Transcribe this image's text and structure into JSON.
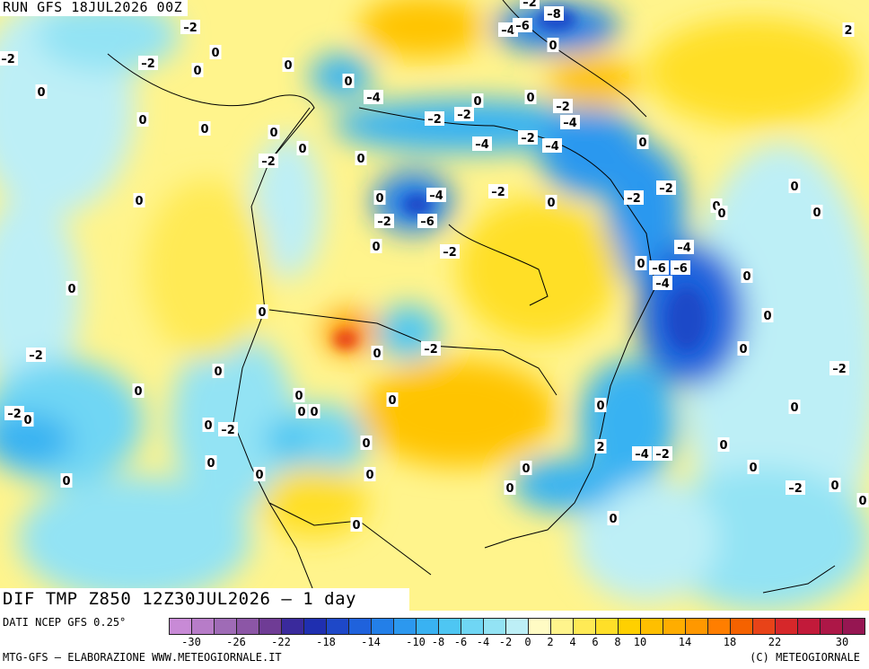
{
  "run_label": "RUN GFS 18JUL2026 00Z",
  "title": "DIF TMP Z850 12Z30JUL2026 – 1 day",
  "source": "DATI NCEP GFS 0.25°",
  "credit_left": "MTG-GFS – ELABORAZIONE WWW.METEOGIORNALE.IT",
  "credit_right": "(C) METEOGIORNALE",
  "legend": {
    "colors": [
      "#c88ad6",
      "#b77cc8",
      "#9f6bb6",
      "#8c56a6",
      "#6f3c95",
      "#3a2a9c",
      "#1f2fb0",
      "#1e48c8",
      "#1f62dc",
      "#237fe8",
      "#2c98ef",
      "#39b2f2",
      "#4ec6f3",
      "#6fd6f4",
      "#93e3f4",
      "#bdeff6",
      "#fffbc4",
      "#fff48c",
      "#ffea55",
      "#ffdf28",
      "#ffd000",
      "#ffbf00",
      "#ffad00",
      "#ff9800",
      "#ff7e00",
      "#f56200",
      "#e84318",
      "#d6272a",
      "#c21a3a",
      "#ad1747",
      "#961652"
    ],
    "tick_labels": [
      "-30",
      "-26",
      "-22",
      "-18",
      "-14",
      "-10",
      "-8",
      "-6",
      "-4",
      "-2",
      "0",
      "2",
      "4",
      "6",
      "8",
      "10",
      "14",
      "18",
      "22",
      "30"
    ],
    "tick_positions": [
      1,
      3,
      5,
      7,
      9,
      11,
      12,
      13,
      14,
      15,
      16,
      17,
      18,
      19,
      20,
      21,
      23,
      25,
      27,
      30
    ]
  },
  "map_labels": [
    {
      "text": "-2",
      "kind": "neg"
    },
    {
      "text": "-2",
      "kind": "neg"
    },
    {
      "text": "0",
      "kind": "zero"
    },
    {
      "text": "0",
      "kind": "zero"
    },
    {
      "text": "0",
      "kind": "zero"
    },
    {
      "text": "-4",
      "kind": "neg"
    },
    {
      "text": "-6",
      "kind": "neg"
    },
    {
      "text": "-8",
      "kind": "neg"
    },
    {
      "text": "-2",
      "kind": "neg"
    },
    {
      "text": "0",
      "kind": "zero"
    },
    {
      "text": "2",
      "kind": "pos"
    },
    {
      "text": "0",
      "kind": "zero"
    },
    {
      "text": "-2",
      "kind": "neg"
    },
    {
      "text": "0",
      "kind": "zero"
    },
    {
      "text": "0",
      "kind": "zero"
    },
    {
      "text": "-2",
      "kind": "neg"
    },
    {
      "text": "-4",
      "kind": "neg"
    },
    {
      "text": "0",
      "kind": "zero"
    },
    {
      "text": "0",
      "kind": "zero"
    },
    {
      "text": "-2",
      "kind": "neg"
    },
    {
      "text": "-2",
      "kind": "neg"
    },
    {
      "text": "-4",
      "kind": "neg"
    },
    {
      "text": "0",
      "kind": "zero"
    },
    {
      "text": "-4",
      "kind": "neg"
    },
    {
      "text": "-4",
      "kind": "neg"
    },
    {
      "text": "-2",
      "kind": "neg"
    },
    {
      "text": "0",
      "kind": "zero"
    },
    {
      "text": "0",
      "kind": "zero"
    },
    {
      "text": "-2",
      "kind": "neg"
    },
    {
      "text": "0",
      "kind": "zero"
    },
    {
      "text": "0",
      "kind": "zero"
    },
    {
      "text": "-4",
      "kind": "neg"
    },
    {
      "text": "-2",
      "kind": "neg"
    },
    {
      "text": "-2",
      "kind": "neg"
    },
    {
      "text": "0",
      "kind": "zero"
    },
    {
      "text": "0",
      "kind": "zero"
    },
    {
      "text": "-2",
      "kind": "neg"
    },
    {
      "text": "-6",
      "kind": "neg"
    },
    {
      "text": "0",
      "kind": "zero"
    },
    {
      "text": "-2",
      "kind": "neg"
    },
    {
      "text": "-4",
      "kind": "neg"
    },
    {
      "text": "0",
      "kind": "zero"
    },
    {
      "text": "-6",
      "kind": "neg"
    },
    {
      "text": "-6",
      "kind": "neg"
    },
    {
      "text": "-4",
      "kind": "neg"
    },
    {
      "text": "0",
      "kind": "zero"
    },
    {
      "text": "0",
      "kind": "zero"
    },
    {
      "text": "0",
      "kind": "zero"
    },
    {
      "text": "0",
      "kind": "zero"
    },
    {
      "text": "-2",
      "kind": "neg"
    },
    {
      "text": "0",
      "kind": "zero"
    },
    {
      "text": "-2",
      "kind": "neg"
    },
    {
      "text": "0",
      "kind": "zero"
    },
    {
      "text": "0",
      "kind": "zero"
    },
    {
      "text": "0",
      "kind": "zero"
    },
    {
      "text": "0",
      "kind": "zero"
    },
    {
      "text": "-2",
      "kind": "neg"
    },
    {
      "text": "0",
      "kind": "zero"
    },
    {
      "text": "0",
      "kind": "zero"
    },
    {
      "text": "0",
      "kind": "zero"
    },
    {
      "text": "-2",
      "kind": "neg"
    },
    {
      "text": "0",
      "kind": "zero"
    },
    {
      "text": "-4",
      "kind": "neg"
    },
    {
      "text": "-2",
      "kind": "neg"
    },
    {
      "text": "0",
      "kind": "zero"
    },
    {
      "text": "0",
      "kind": "zero"
    },
    {
      "text": "0",
      "kind": "zero"
    },
    {
      "text": "-2",
      "kind": "neg"
    },
    {
      "text": "0",
      "kind": "zero"
    },
    {
      "text": "0",
      "kind": "zero"
    },
    {
      "text": "-2",
      "kind": "neg"
    },
    {
      "text": "0",
      "kind": "zero"
    },
    {
      "text": "0",
      "kind": "zero"
    },
    {
      "text": "0",
      "kind": "zero"
    },
    {
      "text": "2",
      "kind": "pos"
    },
    {
      "text": "0",
      "kind": "zero"
    },
    {
      "text": "0",
      "kind": "zero"
    },
    {
      "text": "0",
      "kind": "zero"
    },
    {
      "text": "0",
      "kind": "zero"
    },
    {
      "text": "0",
      "kind": "zero"
    },
    {
      "text": "0",
      "kind": "zero"
    },
    {
      "text": "0",
      "kind": "zero"
    },
    {
      "text": "0",
      "kind": "zero"
    },
    {
      "text": "0",
      "kind": "zero"
    },
    {
      "text": "-2",
      "kind": "neg"
    },
    {
      "text": "0",
      "kind": "zero"
    },
    {
      "text": "0",
      "kind": "zero"
    },
    {
      "text": "0",
      "kind": "zero"
    },
    {
      "text": "0",
      "kind": "zero"
    }
  ]
}
